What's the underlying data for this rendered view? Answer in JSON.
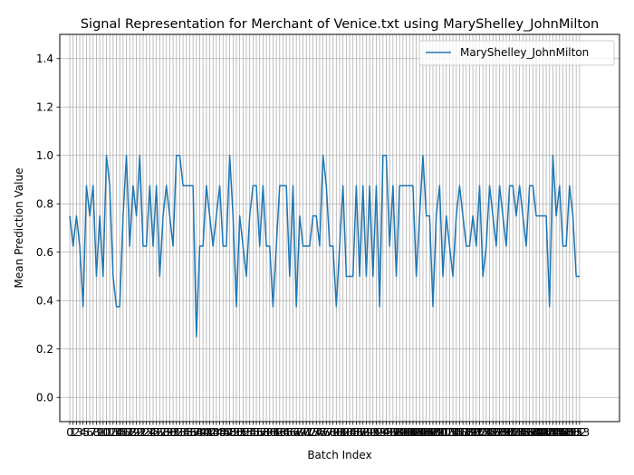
{
  "chart_data": {
    "type": "line",
    "title": "Signal Representation for Merchant of Venice.txt using MaryShelley_JohnMilton",
    "xlabel": "Batch Index",
    "ylabel": "Mean Prediction Value",
    "xlim": [
      -3,
      165
    ],
    "ylim": [
      -0.1,
      1.5
    ],
    "yticks": [
      0.0,
      0.2,
      0.4,
      0.6,
      0.8,
      1.0,
      1.2,
      1.4
    ],
    "ytick_labels": [
      "0.0",
      "0.2",
      "0.4",
      "0.6",
      "0.8",
      "1.0",
      "1.2",
      "1.4"
    ],
    "x_tick_step": 1,
    "grid": true,
    "legend": "top-right",
    "colors": {
      "series": "#1f77b4",
      "grid": "#b0b0b0"
    },
    "series": [
      {
        "name": "MaryShelley_JohnMilton",
        "x_start": 0,
        "values": [
          0.75,
          0.625,
          0.75,
          0.625,
          0.375,
          0.875,
          0.75,
          0.875,
          0.5,
          0.75,
          0.5,
          1.0,
          0.875,
          0.5,
          0.375,
          0.375,
          0.75,
          1.0,
          0.625,
          0.875,
          0.75,
          1.0,
          0.625,
          0.625,
          0.875,
          0.625,
          0.875,
          0.5,
          0.75,
          0.875,
          0.75,
          0.625,
          1.0,
          1.0,
          0.875,
          0.875,
          0.875,
          0.875,
          0.25,
          0.625,
          0.625,
          0.875,
          0.75,
          0.625,
          0.75,
          0.875,
          0.625,
          0.625,
          1.0,
          0.75,
          0.375,
          0.75,
          0.625,
          0.5,
          0.75,
          0.875,
          0.875,
          0.625,
          0.875,
          0.625,
          0.625,
          0.375,
          0.625,
          0.875,
          0.875,
          0.875,
          0.5,
          0.875,
          0.375,
          0.75,
          0.625,
          0.625,
          0.625,
          0.75,
          0.75,
          0.625,
          1.0,
          0.875,
          0.625,
          0.625,
          0.375,
          0.625,
          0.875,
          0.5,
          0.5,
          0.5,
          0.875,
          0.5,
          0.875,
          0.5,
          0.875,
          0.5,
          0.875,
          0.375,
          1.0,
          1.0,
          0.625,
          0.875,
          0.5,
          0.875,
          0.875,
          0.875,
          0.875,
          0.875,
          0.5,
          0.75,
          1.0,
          0.75,
          0.75,
          0.375,
          0.75,
          0.875,
          0.5,
          0.75,
          0.625,
          0.5,
          0.75,
          0.875,
          0.75,
          0.625,
          0.625,
          0.75,
          0.625,
          0.875,
          0.5,
          0.625,
          0.875,
          0.75,
          0.625,
          0.875,
          0.75,
          0.625,
          0.875,
          0.875,
          0.75,
          0.875,
          0.75,
          0.625,
          0.875,
          0.875,
          0.75,
          0.75,
          0.75,
          0.75,
          0.375,
          1.0,
          0.75,
          0.875,
          0.625,
          0.625,
          0.875,
          0.75,
          0.5,
          0.5
        ]
      }
    ]
  }
}
